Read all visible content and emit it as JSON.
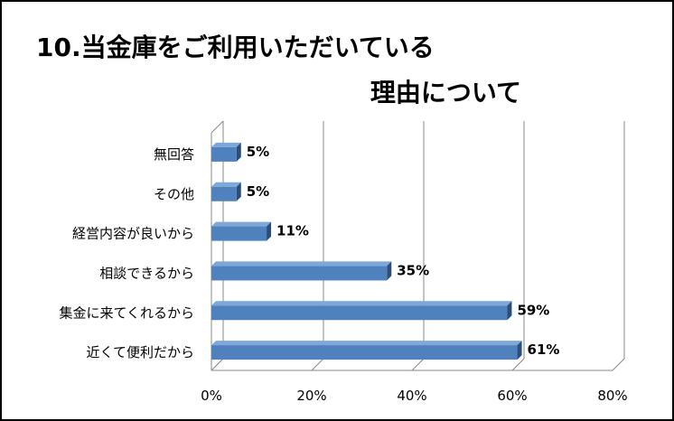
{
  "chart_data": {
    "type": "bar",
    "orientation": "horizontal",
    "title_lines": [
      "10.当金庫をご利用いただいている",
      "理由について"
    ],
    "categories": [
      "無回答",
      "その他",
      "経営内容が良いから",
      "相談できるから",
      "集金に来てくれるから",
      "近くて便利だから"
    ],
    "values": [
      5,
      5,
      11,
      35,
      59,
      61
    ],
    "value_labels": [
      "5%",
      "5%",
      "11%",
      "35%",
      "59%",
      "61%"
    ],
    "xlim": [
      0,
      80
    ],
    "x_ticks": [
      0,
      20,
      40,
      60,
      80
    ],
    "x_tick_labels": [
      "0%",
      "20%",
      "40%",
      "60%",
      "80%"
    ],
    "grid": true,
    "legend": "none",
    "bar_style": "3d",
    "colors": {
      "bar_front": "#4f81bd",
      "bar_top": "#7da7d9",
      "bar_side": "#2c4d7a",
      "grid": "#888888",
      "frame": "#000000"
    }
  }
}
